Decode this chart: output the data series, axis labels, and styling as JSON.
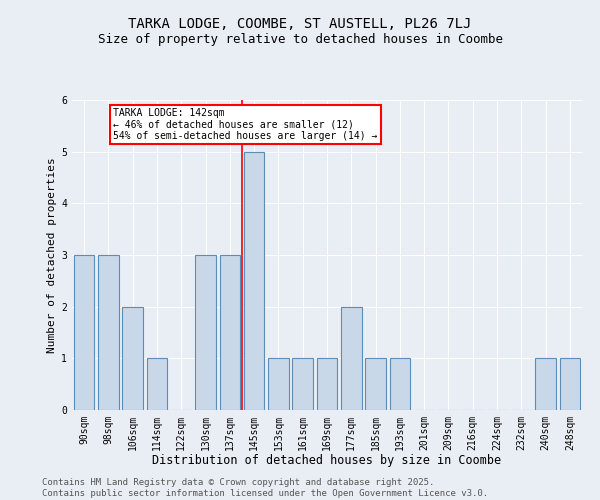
{
  "title1": "TARKA LODGE, COOMBE, ST AUSTELL, PL26 7LJ",
  "title2": "Size of property relative to detached houses in Coombe",
  "xlabel": "Distribution of detached houses by size in Coombe",
  "ylabel": "Number of detached properties",
  "categories": [
    "90sqm",
    "98sqm",
    "106sqm",
    "114sqm",
    "122sqm",
    "130sqm",
    "137sqm",
    "145sqm",
    "153sqm",
    "161sqm",
    "169sqm",
    "177sqm",
    "185sqm",
    "193sqm",
    "201sqm",
    "209sqm",
    "216sqm",
    "224sqm",
    "232sqm",
    "240sqm",
    "248sqm"
  ],
  "values": [
    3,
    3,
    2,
    1,
    0,
    3,
    3,
    5,
    1,
    1,
    1,
    2,
    1,
    1,
    0,
    0,
    0,
    0,
    0,
    1,
    1
  ],
  "bar_color": "#c8d8e8",
  "bar_edge_color": "#5b8db8",
  "ref_line_color": "red",
  "annotation_box_color": "white",
  "annotation_box_edge": "red",
  "reference_line_label": "TARKA LODGE: 142sqm",
  "annotation_line1": "← 46% of detached houses are smaller (12)",
  "annotation_line2": "54% of semi-detached houses are larger (14) →",
  "ylim": [
    0,
    6
  ],
  "yticks": [
    0,
    1,
    2,
    3,
    4,
    5,
    6
  ],
  "background_color": "#e8eef4",
  "footer1": "Contains HM Land Registry data © Crown copyright and database right 2025.",
  "footer2": "Contains public sector information licensed under the Open Government Licence v3.0.",
  "title1_fontsize": 10,
  "title2_fontsize": 9,
  "xlabel_fontsize": 8.5,
  "ylabel_fontsize": 8,
  "tick_fontsize": 7,
  "footer_fontsize": 6.5,
  "annot_fontsize": 7
}
